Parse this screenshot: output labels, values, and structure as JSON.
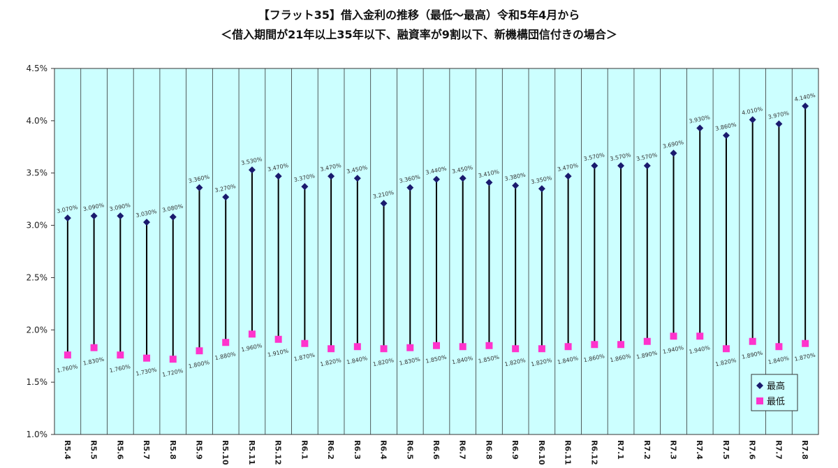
{
  "chart_data": {
    "type": "range-line",
    "title": "【フラット35】借入金利の推移（最低～最高）令和5年4月から",
    "subtitle": "＜借入期間が21年以上35年以下、融資率が9割以下、新機構団信付きの場合＞",
    "ylim": [
      1.0,
      4.5
    ],
    "ytick_labels": [
      "1.0%",
      "1.5%",
      "2.0%",
      "2.5%",
      "3.0%",
      "3.5%",
      "4.0%",
      "4.5%"
    ],
    "ytick_values": [
      1.0,
      1.5,
      2.0,
      2.5,
      3.0,
      3.5,
      4.0,
      4.5
    ],
    "grid": "vertical",
    "legend_position": "bottom-right",
    "categories": [
      "R5.4",
      "R5.5",
      "R5.6",
      "R5.7",
      "R5.8",
      "R5.9",
      "R5.10",
      "R5.11",
      "R5.12",
      "R6.1",
      "R6.2",
      "R6.3",
      "R6.4",
      "R6.5",
      "R6.6",
      "R6.7",
      "R6.8",
      "R6.9",
      "R6.10",
      "R6.11",
      "R6.12",
      "R7.1",
      "R7.2",
      "R7.3",
      "R7.4",
      "R7.5",
      "R7.6",
      "R7.7",
      "R7.8"
    ],
    "series": [
      {
        "name": "最高",
        "color": "#1a1a6e",
        "marker": "diamond",
        "values": [
          3.07,
          3.09,
          3.09,
          3.03,
          3.08,
          3.36,
          3.27,
          3.53,
          3.47,
          3.37,
          3.47,
          3.45,
          3.21,
          3.36,
          3.44,
          3.45,
          3.41,
          3.38,
          3.35,
          3.47,
          3.57,
          3.57,
          3.57,
          3.69,
          3.93,
          3.86,
          4.01,
          3.97,
          4.14
        ],
        "labels": [
          "3.070%",
          "3.090%",
          "3.090%",
          "3.030%",
          "3.080%",
          "3.360%",
          "3.270%",
          "3.530%",
          "3.470%",
          "3.370%",
          "3.470%",
          "3.450%",
          "3.210%",
          "3.360%",
          "3.440%",
          "3.450%",
          "3.410%",
          "3.380%",
          "3.350%",
          "3.470%",
          "3.570%",
          "3.570%",
          "3.570%",
          "3.690%",
          "3.930%",
          "3.860%",
          "4.010%",
          "3.970%",
          "4.140%"
        ]
      },
      {
        "name": "最低",
        "color": "#ff33cc",
        "marker": "square",
        "values": [
          1.76,
          1.83,
          1.76,
          1.73,
          1.72,
          1.8,
          1.88,
          1.96,
          1.91,
          1.87,
          1.82,
          1.84,
          1.82,
          1.83,
          1.85,
          1.84,
          1.85,
          1.82,
          1.82,
          1.84,
          1.86,
          1.86,
          1.89,
          1.94,
          1.94,
          1.82,
          1.89,
          1.84,
          1.87
        ],
        "labels": [
          "1.760%",
          "1.830%",
          "1.760%",
          "1.730%",
          "1.720%",
          "1.800%",
          "1.880%",
          "1.960%",
          "1.910%",
          "1.870%",
          "1.820%",
          "1.840%",
          "1.820%",
          "1.830%",
          "1.850%",
          "1.840%",
          "1.850%",
          "1.820%",
          "1.820%",
          "1.840%",
          "1.860%",
          "1.860%",
          "1.890%",
          "1.940%",
          "1.940%",
          "1.820%",
          "1.890%",
          "1.840%",
          "1.870%"
        ]
      }
    ],
    "colors": {
      "plot_background": "#ccffff",
      "gridline": "#333333",
      "range_line": "#000000"
    }
  }
}
